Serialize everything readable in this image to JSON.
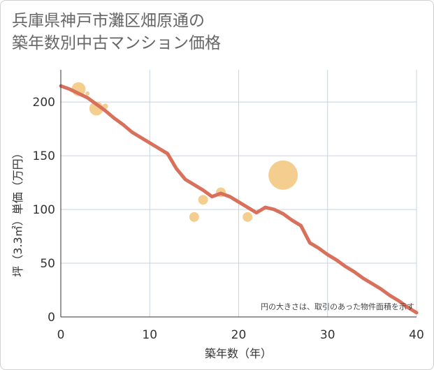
{
  "page": {
    "title_line1": "兵庫県神戸市灘区畑原通の",
    "title_line2": "築年数別中古マンション価格"
  },
  "chart_data": {
    "type": "scatter",
    "title": "兵庫県神戸市灘区畑原通の築年数別中古マンション価格",
    "xlabel": "築年数（年）",
    "ylabel": "坪（3.3㎡）単価（万円）",
    "xlim": [
      0,
      40
    ],
    "ylim": [
      0,
      230
    ],
    "xticks": [
      0,
      10,
      20,
      30,
      40
    ],
    "yticks": [
      0,
      50,
      100,
      150,
      200
    ],
    "grid": true,
    "note": "円の大きさは、取引のあった物件面積を示す",
    "colors": {
      "bubble": "#f2c57a",
      "line": "#d9705b",
      "grid": "#c9d3dd",
      "axis": "#333333"
    },
    "scatter_points": [
      {
        "x": 2,
        "y": 212,
        "size": 10
      },
      {
        "x": 3,
        "y": 208,
        "size": 3
      },
      {
        "x": 4,
        "y": 194,
        "size": 10
      },
      {
        "x": 5,
        "y": 196,
        "size": 4
      },
      {
        "x": 15,
        "y": 93,
        "size": 7
      },
      {
        "x": 16,
        "y": 109,
        "size": 7
      },
      {
        "x": 18,
        "y": 116,
        "size": 7
      },
      {
        "x": 21,
        "y": 93,
        "size": 7
      },
      {
        "x": 25,
        "y": 132,
        "size": 21
      }
    ],
    "trend_line": {
      "x": [
        0,
        1,
        2,
        3,
        4,
        5,
        6,
        7,
        8,
        9,
        10,
        11,
        12,
        13,
        14,
        15,
        16,
        17,
        18,
        19,
        20,
        21,
        22,
        23,
        24,
        25,
        26,
        27,
        28,
        29,
        30,
        31,
        32,
        33,
        34,
        35,
        36,
        37,
        38,
        39,
        40
      ],
      "y": [
        215,
        212,
        208,
        204,
        198,
        192,
        185,
        179,
        172,
        167,
        162,
        157,
        152,
        138,
        128,
        123,
        118,
        112,
        115,
        112,
        107,
        102,
        97,
        102,
        100,
        96,
        90,
        85,
        69,
        64,
        58,
        53,
        47,
        42,
        36,
        31,
        26,
        20,
        15,
        9,
        4
      ]
    }
  }
}
